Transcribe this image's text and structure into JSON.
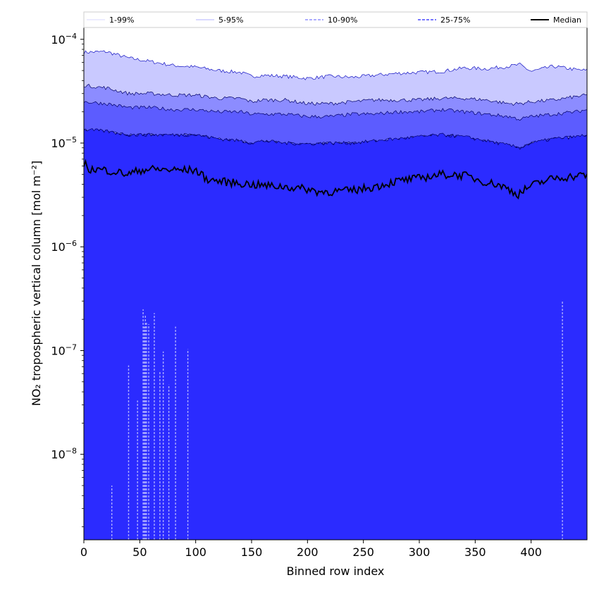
{
  "chart_data": {
    "type": "area",
    "title": "",
    "xlabel": "Binned row index",
    "ylabel": "NO₂ tropospheric vertical column [mol m⁻²]",
    "yscale": "log",
    "xlim": [
      0,
      450
    ],
    "ylim": [
      1.5e-09,
      0.00013
    ],
    "xticks": [
      0,
      50,
      100,
      150,
      200,
      250,
      300,
      350,
      400
    ],
    "xtick_labels": [
      "0",
      "50",
      "100",
      "150",
      "200",
      "250",
      "300",
      "350",
      "400"
    ],
    "ytick_exponents": [
      -8,
      -7,
      -6,
      -5,
      -4
    ],
    "ytick_base": "10",
    "grid": false,
    "legend_position": "top (above plot)",
    "legend": [
      "1-99%",
      "5-95%",
      "10-90%",
      "25-75%",
      "Median"
    ],
    "bands": [
      {
        "name": "1-99%",
        "color": "#2b2bff",
        "x": [
          0,
          20,
          40,
          60,
          80,
          100,
          120,
          140,
          150,
          160,
          180,
          200,
          220,
          240,
          260,
          280,
          300,
          320,
          340,
          360,
          380,
          390,
          400,
          420,
          440,
          450
        ],
        "lower": [
          1.5e-09,
          1.5e-09,
          1.5e-09,
          1.5e-09,
          1.5e-09,
          1.5e-09,
          1.5e-09,
          1.5e-09,
          1.5e-09,
          1.5e-09,
          1.5e-09,
          1.5e-09,
          1.5e-09,
          1.5e-09,
          1.5e-09,
          1.5e-09,
          1.5e-09,
          1.5e-09,
          1.5e-09,
          1.5e-09,
          1.5e-09,
          1.5e-09,
          1.5e-09,
          1.5e-09,
          1.5e-09,
          1.5e-09
        ],
        "upper": [
          7.5e-05,
          7.6e-05,
          6.6e-05,
          6.1e-05,
          5.6e-05,
          5.4e-05,
          5e-05,
          4.8e-05,
          4.4e-05,
          4.5e-05,
          4.4e-05,
          4.2e-05,
          4.4e-05,
          4.3e-05,
          4.5e-05,
          4.7e-05,
          4.8e-05,
          4.9e-05,
          5.3e-05,
          5.2e-05,
          5.5e-05,
          5.7e-05,
          4.9e-05,
          5.5e-05,
          5.1e-05,
          5e-05
        ]
      },
      {
        "name": "5-95%",
        "color": "#8c8cff",
        "x": [
          0,
          20,
          40,
          60,
          80,
          100,
          120,
          140,
          150,
          160,
          180,
          200,
          220,
          240,
          260,
          280,
          300,
          320,
          340,
          360,
          380,
          390,
          400,
          420,
          440,
          450
        ],
        "lower": [
          1.35e-05,
          1.3e-05,
          1.2e-05,
          1.2e-05,
          1.2e-05,
          1.2e-05,
          1.1e-05,
          1.05e-05,
          1e-05,
          1.05e-05,
          1e-05,
          9.8e-06,
          1e-05,
          1e-05,
          1.05e-05,
          1.1e-05,
          1.15e-05,
          1.2e-05,
          1.15e-05,
          1.05e-05,
          9.5e-06,
          9e-06,
          1e-05,
          1.1e-05,
          1.15e-05,
          1.2e-05
        ],
        "upper": [
          3.6e-05,
          3.4e-05,
          3e-05,
          3e-05,
          2.9e-05,
          2.9e-05,
          2.7e-05,
          2.7e-05,
          2.5e-05,
          2.6e-05,
          2.6e-05,
          2.4e-05,
          2.4e-05,
          2.5e-05,
          2.6e-05,
          2.6e-05,
          2.6e-05,
          2.7e-05,
          2.7e-05,
          2.6e-05,
          2.4e-05,
          2.4e-05,
          2.5e-05,
          2.6e-05,
          2.8e-05,
          2.9e-05
        ]
      },
      {
        "name": "10-90%",
        "color": "#5c5cff",
        "x": [
          0,
          20,
          40,
          60,
          80,
          100,
          120,
          140,
          150,
          160,
          180,
          200,
          220,
          240,
          260,
          280,
          300,
          320,
          340,
          360,
          380,
          390,
          400,
          420,
          440,
          450
        ],
        "lower": [
          1.35e-05,
          1.3e-05,
          1.2e-05,
          1.2e-05,
          1.2e-05,
          1.2e-05,
          1.1e-05,
          1.05e-05,
          1e-05,
          1.05e-05,
          1e-05,
          9.8e-06,
          1e-05,
          1e-05,
          1.05e-05,
          1.1e-05,
          1.15e-05,
          1.2e-05,
          1.15e-05,
          1.05e-05,
          9.5e-06,
          9e-06,
          1e-05,
          1.1e-05,
          1.15e-05,
          1.2e-05
        ],
        "upper": [
          2.5e-05,
          2.4e-05,
          2.2e-05,
          2.2e-05,
          2.1e-05,
          2.1e-05,
          2e-05,
          2e-05,
          1.9e-05,
          1.9e-05,
          1.9e-05,
          1.8e-05,
          1.8e-05,
          1.9e-05,
          1.9e-05,
          2e-05,
          2e-05,
          2.1e-05,
          2e-05,
          1.9e-05,
          1.8e-05,
          1.7e-05,
          1.8e-05,
          1.9e-05,
          2e-05,
          2.1e-05
        ]
      },
      {
        "name": "25-75%",
        "color": "#2b2bff",
        "x": [
          0,
          20,
          40,
          60,
          80,
          100,
          120,
          140,
          150,
          160,
          180,
          200,
          220,
          240,
          260,
          280,
          300,
          320,
          340,
          360,
          380,
          390,
          400,
          420,
          440,
          450
        ],
        "lower": [
          1.5e-09,
          1.5e-09,
          1.5e-09,
          1.5e-09,
          1.5e-09,
          1.5e-09,
          1.5e-09,
          1.5e-09,
          1.5e-09,
          1.5e-09,
          1.5e-09,
          1.5e-09,
          1.5e-09,
          1.5e-09,
          1.5e-09,
          1.5e-09,
          1.5e-09,
          1.5e-09,
          1.5e-09,
          1.5e-09,
          1.5e-09,
          1.5e-09,
          1.5e-09,
          1.5e-09,
          1.5e-09,
          1.5e-09
        ],
        "upper": [
          1.35e-05,
          1.3e-05,
          1.2e-05,
          1.2e-05,
          1.2e-05,
          1.2e-05,
          1.1e-05,
          1.05e-05,
          1e-05,
          1.05e-05,
          1e-05,
          9.8e-06,
          1e-05,
          1e-05,
          1.05e-05,
          1.1e-05,
          1.15e-05,
          1.2e-05,
          1.15e-05,
          1.05e-05,
          9.5e-06,
          9e-06,
          1e-05,
          1.1e-05,
          1.15e-05,
          1.2e-05
        ]
      }
    ],
    "median": {
      "name": "Median",
      "color": "#000000",
      "x": [
        0,
        5,
        20,
        40,
        50,
        60,
        80,
        100,
        110,
        120,
        140,
        160,
        180,
        200,
        210,
        220,
        240,
        260,
        280,
        300,
        310,
        320,
        340,
        360,
        370,
        380,
        388,
        400,
        420,
        440,
        450
      ],
      "values": [
        6.5e-06,
        5.6e-06,
        5.5e-06,
        5e-06,
        5.5e-06,
        5.6e-06,
        5.5e-06,
        5.5e-06,
        4.5e-06,
        4.3e-06,
        4.1e-06,
        3.9e-06,
        3.8e-06,
        3.6e-06,
        3.4e-06,
        3.4e-06,
        3.5e-06,
        3.8e-06,
        4.3e-06,
        4.6e-06,
        4.8e-06,
        5e-06,
        4.9e-06,
        4.2e-06,
        4e-06,
        3.6e-06,
        3.2e-06,
        3.9e-06,
        4.6e-06,
        4.8e-06,
        5e-06
      ]
    },
    "low_tail_spikes": {
      "color": "#a9a9ff",
      "x": [
        25,
        40,
        48,
        53,
        54,
        55,
        56,
        58,
        63,
        68,
        71,
        76,
        82,
        93,
        428
      ],
      "tops": [
        5e-09,
        7.2e-08,
        3.3e-08,
        2.5e-07,
        1.7e-07,
        2.2e-07,
        1.9e-07,
        1.8e-07,
        2.3e-07,
        6.3e-08,
        9.8e-08,
        4.7e-08,
        1.7e-07,
        1.03e-07,
        3e-07
      ]
    }
  }
}
